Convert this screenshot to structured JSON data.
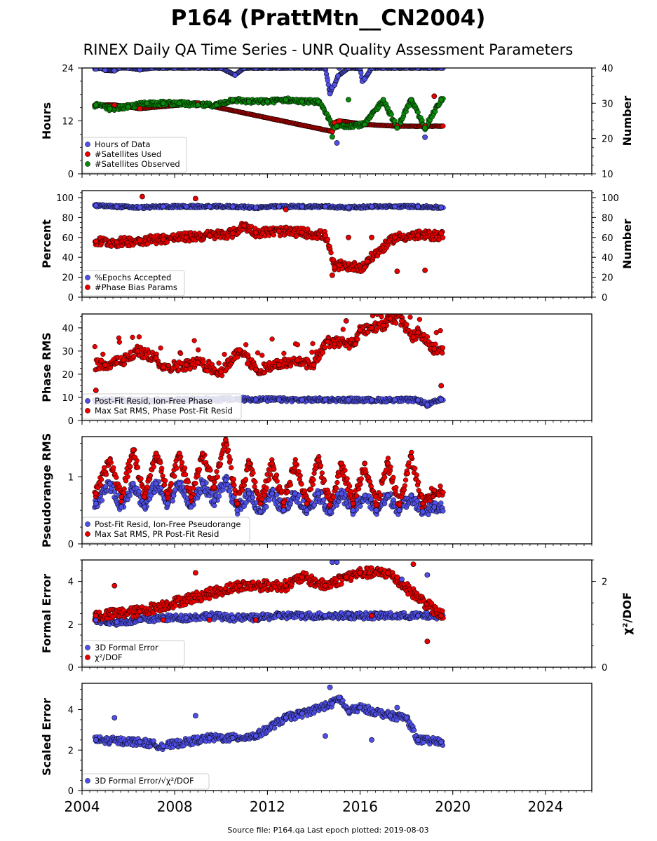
{
  "title": "P164 (PrattMtn__CN2004)",
  "subtitle": "RINEX Daily QA Time Series - UNR Quality Assessment Parameters",
  "footer": "Source file: P164.qa Last epoch plotted: 2019-08-03",
  "colors": {
    "blue": "#5050e8",
    "red": "#e80000",
    "green": "#0a8a0a",
    "edge": "#000000"
  },
  "chart_data": [
    {
      "type": "scatter",
      "ylabel": "Hours",
      "y2label": "Number",
      "xlim": [
        2004.0,
        2026.0
      ],
      "ylim": [
        0,
        24
      ],
      "y2lim": [
        10,
        40
      ],
      "yticks": [
        0,
        12,
        24
      ],
      "y2ticks": [
        10,
        20,
        30,
        40
      ],
      "legend": "lower-left",
      "series": [
        {
          "name": "Hours of Data",
          "color": "blue",
          "axis": "left",
          "x": [
            2004.6,
            2004.8,
            2005.0,
            2005.4,
            2005.6,
            2006.0,
            2006.5,
            2007.0,
            2007.5,
            2008.0,
            2008.5,
            2009.0,
            2009.5,
            2010.0,
            2010.6,
            2011.0,
            2011.5,
            2012.0,
            2012.5,
            2013.0,
            2013.5,
            2014.0,
            2014.5,
            2014.7,
            2014.8,
            2014.9,
            2015.0,
            2015.05,
            2015.1,
            2015.5,
            2016.0,
            2016.1,
            2016.2,
            2016.5,
            2017.0,
            2017.5,
            2018.0,
            2018.5,
            2018.8,
            2019.0,
            2019.5
          ],
          "y": [
            23.8,
            24,
            23.5,
            23.4,
            24,
            24,
            23.6,
            24,
            24,
            24,
            24,
            24,
            24,
            24,
            22.4,
            24,
            24,
            24,
            24,
            24,
            24,
            24,
            24,
            18.2,
            19.6,
            20.2,
            7.0,
            22.2,
            24,
            24,
            24,
            21.0,
            21.5,
            24,
            24,
            24,
            24,
            24,
            8.3,
            24,
            24
          ]
        },
        {
          "name": "#Satellites Used",
          "color": "red",
          "axis": "right",
          "x": [
            2005.4,
            2006.5,
            2009.0,
            2014.8,
            2014.9,
            2015.1,
            2016.2,
            2017.6,
            2018.8,
            2019.2
          ],
          "y": [
            29.5,
            28.5,
            30,
            22,
            24.5,
            25,
            24,
            23.5,
            23.5,
            32
          ]
        },
        {
          "name": "#Satellites Observed",
          "color": "green",
          "axis": "right",
          "x": [
            2004.6,
            2005.2,
            2006.0,
            2006.8,
            2007.5,
            2008.2,
            2009.0,
            2009.8,
            2010.5,
            2011.2,
            2012.0,
            2012.8,
            2013.5,
            2014.2,
            2014.8,
            2014.9,
            2015.0,
            2015.5,
            2016.2,
            2017.0,
            2017.6,
            2018.2,
            2018.8,
            2019.5
          ],
          "y": [
            29.5,
            28.5,
            29,
            30,
            30,
            30,
            29.5,
            29.5,
            31,
            30.5,
            30.5,
            31,
            30.5,
            30.5,
            20.5,
            23,
            23.5,
            31,
            24,
            31,
            23,
            31,
            23,
            31
          ]
        }
      ]
    },
    {
      "type": "scatter",
      "ylabel": "Percent",
      "y2label": "Number",
      "xlim": [
        2004.0,
        2026.0
      ],
      "ylim": [
        0,
        107
      ],
      "y2lim": [
        0,
        107
      ],
      "yticks": [
        0,
        20,
        40,
        60,
        80,
        100
      ],
      "y2ticks": [
        0,
        20,
        40,
        60,
        80,
        100
      ],
      "legend": "lower-left",
      "series": [
        {
          "name": "%Epochs Accepted",
          "color": "blue",
          "axis": "left",
          "x": [
            2004.6,
            2005.5,
            2006.5,
            2007.5,
            2008.5,
            2009.5,
            2010.5,
            2011.5,
            2012.5,
            2013.5,
            2014.5,
            2015.5,
            2016.5,
            2017.5,
            2018.5,
            2019.5
          ],
          "y": [
            92,
            91,
            90,
            91,
            91,
            91,
            91,
            90,
            91,
            91,
            91,
            90,
            91,
            91,
            91,
            90
          ]
        },
        {
          "name": "#Phase Bias Params",
          "color": "red",
          "axis": "right",
          "x": [
            2004.6,
            2005.5,
            2006.5,
            2006.6,
            2007.5,
            2008.5,
            2008.9,
            2009.5,
            2010.5,
            2011.0,
            2011.5,
            2012.5,
            2012.8,
            2013.5,
            2014.5,
            2014.8,
            2014.9,
            2015.1,
            2015.5,
            2016.2,
            2016.3,
            2016.5,
            2017.5,
            2017.6,
            2018.5,
            2018.8,
            2019.5
          ],
          "y": [
            56,
            55,
            57,
            101,
            58,
            60,
            99,
            62,
            64,
            72,
            65,
            66,
            88,
            65,
            62,
            22,
            30,
            32,
            60,
            30,
            36,
            60,
            60,
            26,
            62,
            27,
            64
          ]
        }
      ]
    },
    {
      "type": "scatter",
      "ylabel": "Phase RMS",
      "xlim": [
        2004.0,
        2026.0
      ],
      "ylim": [
        0,
        46
      ],
      "yticks": [
        0,
        10,
        20,
        30,
        40
      ],
      "legend": "lower-left",
      "series": [
        {
          "name": "Post-Fit Resid, Ion-Free Phase",
          "color": "blue",
          "axis": "left",
          "x": [
            2004.6,
            2005.5,
            2006.5,
            2007.5,
            2008.5,
            2009.5,
            2010.5,
            2011.5,
            2012.5,
            2013.5,
            2014.5,
            2015.5,
            2016.5,
            2017.5,
            2018.5,
            2018.9,
            2019.5
          ],
          "y": [
            8.5,
            8.8,
            8.6,
            8.7,
            8.8,
            9.0,
            9.2,
            9.1,
            9.0,
            8.9,
            9.0,
            8.9,
            8.8,
            8.9,
            8.8,
            6.8,
            9.0
          ]
        },
        {
          "name": "Max Sat RMS, Phase Post-Fit Resid",
          "color": "red",
          "axis": "left",
          "x": [
            2004.6,
            2005.0,
            2005.8,
            2006.4,
            2007.2,
            2007.5,
            2008.5,
            2009.0,
            2010.0,
            2010.8,
            2011.5,
            2012.5,
            2013.3,
            2014.0,
            2014.6,
            2015.4,
            2015.8,
            2016.0,
            2016.5,
            2017.0,
            2017.3,
            2017.8,
            2018.3,
            2018.5,
            2019.2,
            2019.5
          ],
          "y": [
            13,
            24,
            26,
            30,
            27,
            23,
            24,
            25,
            21,
            30.5,
            22,
            24,
            26,
            24,
            34,
            43,
            33,
            39,
            40,
            41,
            44,
            43,
            36,
            38,
            31,
            15
          ]
        }
      ]
    },
    {
      "type": "scatter",
      "ylabel": "Pseudorange RMS",
      "xlim": [
        2004.0,
        2026.0
      ],
      "ylim": [
        0,
        1.6
      ],
      "yticks": [
        0,
        1
      ],
      "legend": "lower-left",
      "series": [
        {
          "name": "Post-Fit Resid, Ion-Free Pseudorange",
          "color": "blue",
          "axis": "left",
          "x": [
            2004.6,
            2005.2,
            2005.7,
            2006.2,
            2006.7,
            2007.2,
            2007.7,
            2008.2,
            2008.7,
            2009.2,
            2009.7,
            2010.2,
            2010.7,
            2011.2,
            2011.7,
            2012.2,
            2012.7,
            2013.2,
            2013.7,
            2014.2,
            2014.7,
            2015.2,
            2015.7,
            2016.2,
            2016.7,
            2017.2,
            2017.7,
            2018.2,
            2018.7,
            2019.2
          ],
          "y": [
            0.6,
            0.9,
            0.55,
            0.9,
            0.55,
            0.9,
            0.6,
            0.9,
            0.55,
            0.9,
            0.65,
            0.95,
            0.5,
            0.75,
            0.48,
            0.75,
            0.5,
            0.75,
            0.5,
            0.75,
            0.48,
            0.75,
            0.5,
            0.72,
            0.5,
            0.72,
            0.5,
            0.72,
            0.48,
            0.55
          ]
        },
        {
          "name": "Max Sat RMS, PR Post-Fit Resid",
          "color": "red",
          "axis": "left",
          "x": [
            2004.6,
            2005.2,
            2005.7,
            2006.2,
            2006.7,
            2007.2,
            2007.7,
            2008.2,
            2008.7,
            2009.2,
            2009.7,
            2010.2,
            2010.7,
            2011.2,
            2011.7,
            2012.2,
            2012.7,
            2013.2,
            2013.7,
            2014.2,
            2014.7,
            2015.2,
            2015.7,
            2016.2,
            2016.7,
            2017.2,
            2017.7,
            2018.2,
            2018.7,
            2019.2
          ],
          "y": [
            0.75,
            1.25,
            0.7,
            1.4,
            0.7,
            1.35,
            0.75,
            1.35,
            0.7,
            1.35,
            0.85,
            1.55,
            0.6,
            1.2,
            0.6,
            1.2,
            0.62,
            1.2,
            0.6,
            1.25,
            0.58,
            1.2,
            0.6,
            1.2,
            0.58,
            1.2,
            0.58,
            1.3,
            0.6,
            0.8
          ]
        }
      ]
    },
    {
      "type": "scatter",
      "ylabel": "Formal Error",
      "y2label": "χ²/DOF",
      "xlim": [
        2004.0,
        2026.0
      ],
      "ylim": [
        0,
        5
      ],
      "y2lim": [
        0,
        2.5
      ],
      "yticks": [
        0,
        2,
        4
      ],
      "y2ticks": [
        0,
        2
      ],
      "legend": "lower-left",
      "series": [
        {
          "name": "3D Formal Error",
          "color": "blue",
          "axis": "left",
          "x": [
            2004.6,
            2005.5,
            2006.5,
            2007.5,
            2008.5,
            2009.5,
            2010.5,
            2011.5,
            2012.5,
            2013.5,
            2014.5,
            2014.8,
            2015.0,
            2015.5,
            2016.5,
            2017.5,
            2017.8,
            2018.5,
            2018.9,
            2019.5
          ],
          "y": [
            2.2,
            2.1,
            2.2,
            2.3,
            2.3,
            2.4,
            2.3,
            2.3,
            2.4,
            2.4,
            2.4,
            4.9,
            4.9,
            2.5,
            2.4,
            2.4,
            4.1,
            2.4,
            4.3,
            2.4
          ]
        },
        {
          "name": "χ²/DOF",
          "color": "red",
          "axis": "right",
          "x": [
            2004.6,
            2005.4,
            2006.5,
            2007.5,
            2008.9,
            2009.5,
            2010.8,
            2011.5,
            2012.8,
            2013.5,
            2014.5,
            2015.4,
            2016.0,
            2016.5,
            2017.2,
            2017.6,
            2018.3,
            2018.9,
            2019.5
          ],
          "y": [
            1.2,
            1.9,
            1.3,
            1.1,
            2.2,
            1.1,
            1.9,
            1.1,
            1.9,
            2.1,
            1.9,
            2.1,
            2.2,
            1.2,
            2.2,
            2.1,
            2.4,
            0.6,
            1.2
          ]
        }
      ]
    },
    {
      "type": "scatter",
      "ylabel": "Scaled Error",
      "xlim": [
        2004.0,
        2026.0
      ],
      "ylim": [
        0,
        5.3
      ],
      "yticks": [
        0,
        2,
        4
      ],
      "legend": "lower-left",
      "series": [
        {
          "name": "3D Formal Error/√χ²/DOF",
          "color": "blue",
          "axis": "left",
          "x": [
            2004.6,
            2005.4,
            2006.5,
            2007.5,
            2008.9,
            2009.5,
            2010.5,
            2011.5,
            2012.8,
            2013.5,
            2014.5,
            2014.7,
            2014.8,
            2015.1,
            2015.5,
            2016.0,
            2016.5,
            2017.3,
            2017.6,
            2018.0,
            2018.5,
            2019.5
          ],
          "y": [
            2.5,
            3.6,
            2.4,
            2.2,
            3.7,
            2.6,
            2.6,
            2.7,
            3.6,
            3.8,
            2.7,
            5.1,
            4.3,
            4.6,
            3.9,
            4.1,
            2.5,
            3.7,
            4.1,
            3.6,
            2.5,
            2.4
          ]
        }
      ]
    }
  ],
  "xticks": [
    "2004",
    "2008",
    "2012",
    "2016",
    "2020",
    "2024"
  ],
  "xtick_values": [
    2004,
    2008,
    2012,
    2016,
    2020,
    2024
  ]
}
